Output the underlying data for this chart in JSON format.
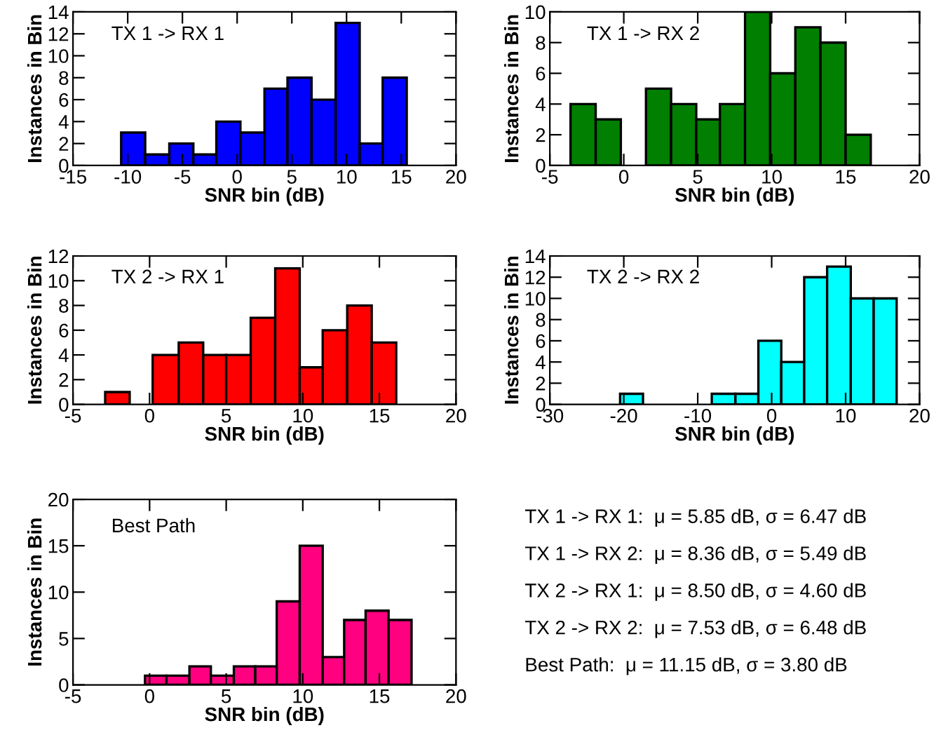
{
  "chart_data": [
    {
      "type": "histogram",
      "title": "TX 1 -> RX 1",
      "xlabel": "SNR bin (dB)",
      "ylabel": "Instances in Bin",
      "color": "#0000ff",
      "bins": [
        -10.6,
        -8.4,
        -6.2,
        -4.0,
        -1.9,
        0.3,
        2.5,
        4.6,
        6.8,
        9.0,
        11.2,
        13.3,
        15.5
      ],
      "values": [
        3,
        1,
        2,
        1,
        4,
        3,
        7,
        8,
        6,
        13,
        2,
        8
      ],
      "xlim": [
        -15,
        20
      ],
      "xticks": [
        -15,
        -10,
        -5,
        0,
        5,
        10,
        15,
        20
      ],
      "ylim": [
        0,
        14
      ],
      "yticks": [
        0,
        2,
        4,
        6,
        8,
        10,
        12,
        14
      ]
    },
    {
      "type": "histogram",
      "title": "TX 1 -> RX 2",
      "xlabel": "SNR bin (dB)",
      "ylabel": "Instances in Bin",
      "color": "#007f00",
      "bins": [
        -3.6,
        -1.9,
        -0.2,
        1.5,
        3.2,
        4.9,
        6.5,
        8.2,
        9.9,
        11.6,
        13.3,
        15.0,
        16.7
      ],
      "values": [
        4,
        3,
        0,
        5,
        4,
        3,
        4,
        10,
        6,
        9,
        8,
        2
      ],
      "xlim": [
        -5,
        20
      ],
      "xticks": [
        -5,
        0,
        5,
        10,
        15,
        20
      ],
      "ylim": [
        0,
        10
      ],
      "yticks": [
        0,
        2,
        4,
        6,
        8,
        10
      ]
    },
    {
      "type": "histogram",
      "title": "TX 2 -> RX 1",
      "xlabel": "SNR bin (dB)",
      "ylabel": "Instances in Bin",
      "color": "#ff0000",
      "bins": [
        -2.9,
        -1.3,
        0.2,
        1.9,
        3.5,
        5.0,
        6.6,
        8.2,
        9.8,
        11.3,
        12.9,
        14.5,
        16.1
      ],
      "values": [
        1,
        0,
        4,
        5,
        4,
        4,
        7,
        11,
        3,
        6,
        8,
        5
      ],
      "xlim": [
        -5,
        20
      ],
      "xticks": [
        -5,
        0,
        5,
        10,
        15,
        20
      ],
      "ylim": [
        0,
        12
      ],
      "yticks": [
        0,
        2,
        4,
        6,
        8,
        10,
        12
      ]
    },
    {
      "type": "histogram",
      "title": "TX 2 -> RX 2",
      "xlabel": "SNR bin (dB)",
      "ylabel": "Instances in Bin",
      "color": "#00ffff",
      "bins": [
        -20.5,
        -17.4,
        -8.1,
        -4.9,
        -1.8,
        1.3,
        4.4,
        7.5,
        10.7,
        13.8,
        16.9
      ],
      "values": [
        1,
        0,
        1,
        1,
        6,
        4,
        12,
        13,
        10,
        10
      ],
      "xlim": [
        -30,
        20
      ],
      "xticks": [
        -30,
        -20,
        -10,
        0,
        10,
        20
      ],
      "ylim": [
        0,
        14
      ],
      "yticks": [
        0,
        2,
        4,
        6,
        8,
        10,
        12,
        14
      ]
    },
    {
      "type": "histogram",
      "title": "Best Path",
      "xlabel": "SNR bin (dB)",
      "ylabel": "Instances in Bin",
      "color": "#ff0080",
      "bins": [
        -0.3,
        1.1,
        2.6,
        4.0,
        5.5,
        6.9,
        8.3,
        9.8,
        11.3,
        12.7,
        14.1,
        15.6,
        17.1
      ],
      "values": [
        1,
        1,
        2,
        1,
        2,
        2,
        9,
        15,
        3,
        7,
        8,
        7
      ],
      "xlim": [
        -5,
        20
      ],
      "xticks": [
        -5,
        0,
        5,
        10,
        15,
        20
      ],
      "ylim": [
        0,
        20
      ],
      "yticks": [
        0,
        5,
        10,
        15,
        20
      ]
    },
    {
      "type": "other",
      "annotations": [
        "TX 1 -> RX 1:  μ = 5.85 dB, σ = 6.47 dB",
        "TX 1 -> RX 2:  μ = 8.36 dB, σ = 5.49 dB",
        "TX 2 -> RX 1:  μ = 8.50 dB, σ = 4.60 dB",
        "TX 2 -> RX 2:  μ = 7.53 dB, σ = 6.48 dB",
        "Best Path:  μ = 11.15 dB, σ = 3.80 dB"
      ]
    }
  ]
}
